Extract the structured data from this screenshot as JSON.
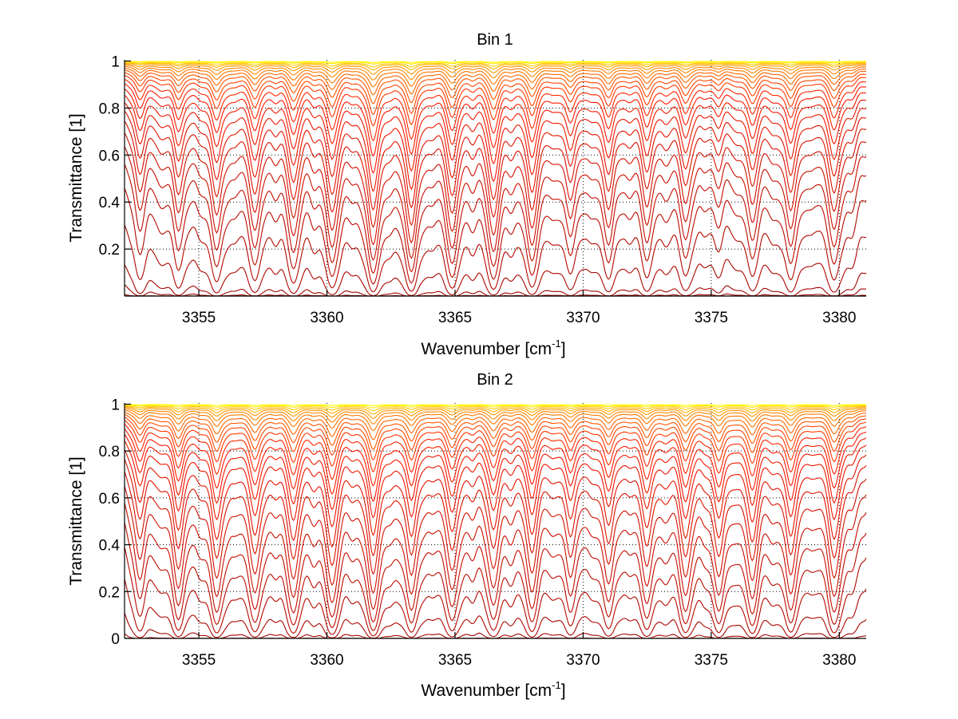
{
  "chart_data": [
    {
      "type": "line",
      "title": "Bin 1",
      "xlabel": "Wavenumber [cm",
      "xlabel_sup": "-1",
      "xlabel_end": "]",
      "ylabel": "Transmittance [1]",
      "xlim": [
        3352.1,
        3381.05
      ],
      "ylim": [
        0,
        1.005
      ],
      "xticks": [
        3355,
        3360,
        3365,
        3370,
        3375,
        3380
      ],
      "xtick_labels": [
        "3355",
        "3360",
        "3365",
        "3370",
        "3375",
        "3380"
      ],
      "yticks": [
        0.2,
        0.4,
        0.6,
        0.8,
        1
      ],
      "ytick_labels": [
        "0.2",
        "0.4",
        "0.6",
        "0.8",
        "1"
      ],
      "grid": true,
      "model": "T = exp(-s * (continuum + sum of lorentzian absorption lines))",
      "line_width": 0.25,
      "absorption_lines": [
        [
          3352.7,
          1.5
        ],
        [
          3353.5,
          0.6
        ],
        [
          3354.2,
          2.2
        ],
        [
          3355.0,
          0.6
        ],
        [
          3355.7,
          3.2
        ],
        [
          3356.4,
          0.7
        ],
        [
          3357.2,
          3.0
        ],
        [
          3358.0,
          0.6
        ],
        [
          3358.7,
          3.2
        ],
        [
          3359.5,
          0.7
        ],
        [
          3360.2,
          4.0
        ],
        [
          3361.0,
          0.6
        ],
        [
          3361.8,
          5.0
        ],
        [
          3362.5,
          0.8
        ],
        [
          3363.3,
          4.8
        ],
        [
          3364.1,
          0.7
        ],
        [
          3364.9,
          4.0
        ],
        [
          3365.7,
          0.8
        ],
        [
          3366.5,
          4.2
        ],
        [
          3367.2,
          0.8
        ],
        [
          3368.0,
          3.8
        ],
        [
          3368.8,
          0.7
        ],
        [
          3369.5,
          2.4
        ],
        [
          3370.3,
          0.8
        ],
        [
          3371.0,
          2.8
        ],
        [
          3371.8,
          0.7
        ],
        [
          3372.5,
          2.6
        ],
        [
          3373.2,
          0.8
        ],
        [
          3374.0,
          2.6
        ],
        [
          3374.7,
          0.6
        ],
        [
          3375.3,
          1.2
        ],
        [
          3376.0,
          0.6
        ],
        [
          3376.6,
          2.6
        ],
        [
          3377.4,
          0.8
        ],
        [
          3378.1,
          3.0
        ],
        [
          3378.9,
          0.7
        ],
        [
          3379.8,
          3.2
        ],
        [
          3380.5,
          0.8
        ]
      ],
      "scales": [
        8,
        4,
        2.4,
        1.6,
        0.95,
        0.62,
        0.46,
        0.36,
        0.29,
        0.235,
        0.19,
        0.155,
        0.125,
        0.1,
        0.08,
        0.064,
        0.05,
        0.04,
        0.031,
        0.024,
        0.018,
        0.013,
        0.009,
        0.006,
        0.004,
        0.002,
        0.001
      ]
    },
    {
      "type": "line",
      "title": "Bin 2",
      "xlabel": "Wavenumber [cm",
      "xlabel_sup": "-1",
      "xlabel_end": "]",
      "ylabel": "Transmittance [1]",
      "xlim": [
        3352.1,
        3381.05
      ],
      "ylim": [
        0,
        1.005
      ],
      "xticks": [
        3355,
        3360,
        3365,
        3370,
        3375,
        3380
      ],
      "xtick_labels": [
        "3355",
        "3360",
        "3365",
        "3370",
        "3375",
        "3380"
      ],
      "yticks": [
        0,
        0.2,
        0.4,
        0.6,
        0.8,
        1
      ],
      "ytick_labels": [
        "0",
        "0.2",
        "0.4",
        "0.6",
        "0.8",
        "1"
      ],
      "grid": true,
      "model": "T = exp(-s * (continuum + sum of lorentzian absorption lines))",
      "line_width": 0.25,
      "absorption_lines": [
        [
          3352.7,
          2.0
        ],
        [
          3353.5,
          0.6
        ],
        [
          3354.2,
          3.2
        ],
        [
          3355.0,
          0.6
        ],
        [
          3355.7,
          3.8
        ],
        [
          3356.4,
          0.7
        ],
        [
          3357.2,
          3.6
        ],
        [
          3358.0,
          0.6
        ],
        [
          3358.7,
          3.8
        ],
        [
          3359.5,
          0.7
        ],
        [
          3360.2,
          4.2
        ],
        [
          3361.0,
          0.6
        ],
        [
          3361.8,
          4.8
        ],
        [
          3362.5,
          0.8
        ],
        [
          3363.3,
          3.6
        ],
        [
          3364.1,
          0.7
        ],
        [
          3364.9,
          3.4
        ],
        [
          3365.7,
          0.8
        ],
        [
          3366.5,
          3.2
        ],
        [
          3367.2,
          0.8
        ],
        [
          3368.0,
          3.4
        ],
        [
          3368.8,
          0.7
        ],
        [
          3369.5,
          2.6
        ],
        [
          3370.3,
          0.8
        ],
        [
          3371.0,
          3.0
        ],
        [
          3371.8,
          0.7
        ],
        [
          3372.5,
          3.0
        ],
        [
          3373.2,
          0.8
        ],
        [
          3374.0,
          3.6
        ],
        [
          3374.7,
          0.6
        ],
        [
          3375.3,
          3.6
        ],
        [
          3376.0,
          0.6
        ],
        [
          3376.6,
          3.8
        ],
        [
          3377.4,
          0.8
        ],
        [
          3378.1,
          3.6
        ],
        [
          3378.9,
          0.7
        ],
        [
          3379.8,
          4.0
        ],
        [
          3380.5,
          0.8
        ]
      ],
      "scales": [
        12,
        6,
        3,
        1.7,
        1.05,
        0.72,
        0.54,
        0.42,
        0.33,
        0.26,
        0.205,
        0.165,
        0.13,
        0.105,
        0.085,
        0.068,
        0.054,
        0.043,
        0.034,
        0.026,
        0.019,
        0.014,
        0.01,
        0.007,
        0.0045,
        0.0025,
        0.001
      ]
    }
  ],
  "colors": {
    "low": "#8b0000",
    "mid": "#ff1a00",
    "high": "#ff9900",
    "top": "#ffff00"
  }
}
